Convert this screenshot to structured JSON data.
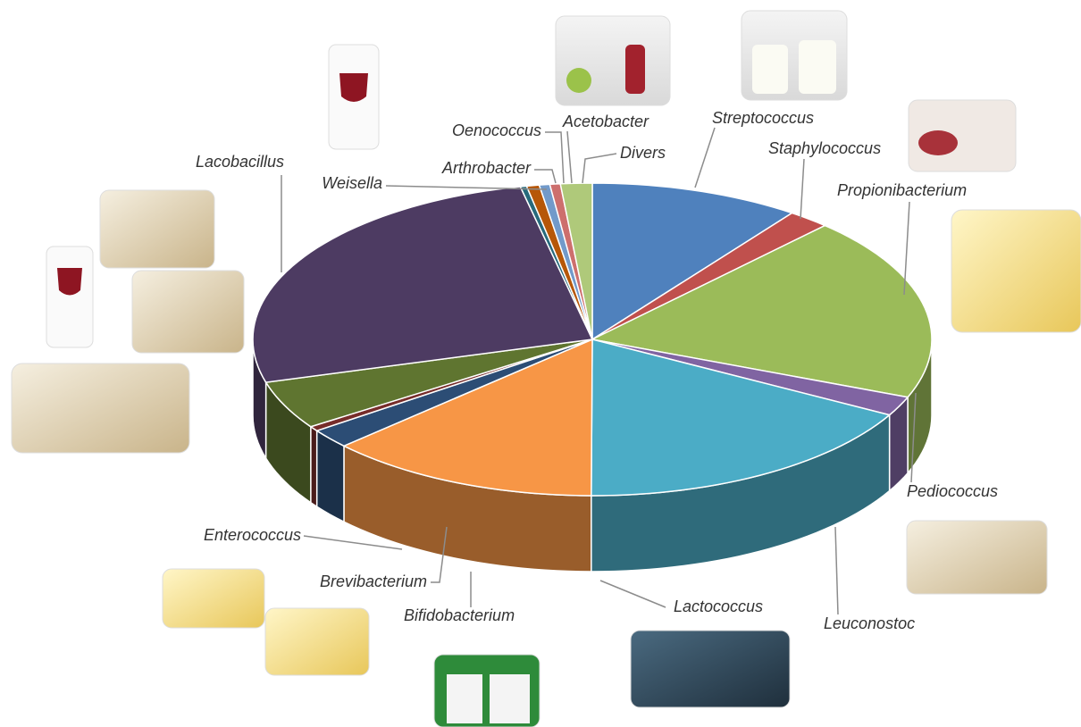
{
  "chart_data": {
    "type": "pie",
    "categories": [
      "Streptococcus",
      "Staphylococcus",
      "Propionibacterium",
      "Pediococcus",
      "Leuconostoc",
      "Lactococcus",
      "Bifidobacterium",
      "Brevibacterium",
      "Enterococcus",
      "Lacobacillus",
      "Weisella",
      "Arthrobacter",
      "Oenococcus",
      "Acetobacter",
      "Divers"
    ],
    "values": [
      10,
      2,
      19,
      2,
      17,
      13,
      2,
      0.5,
      5,
      26,
      0.3,
      0.6,
      0.5,
      0.5,
      1.5
    ],
    "colors": [
      "#4f81bd",
      "#c0504d",
      "#9bbb59",
      "#8064a2",
      "#4bacc6",
      "#f79646",
      "#2c4d75",
      "#772c2a",
      "#5f7530",
      "#4d3b62",
      "#276a7c",
      "#b65708",
      "#729aca",
      "#cd6f6d",
      "#afc97a"
    ]
  }
}
